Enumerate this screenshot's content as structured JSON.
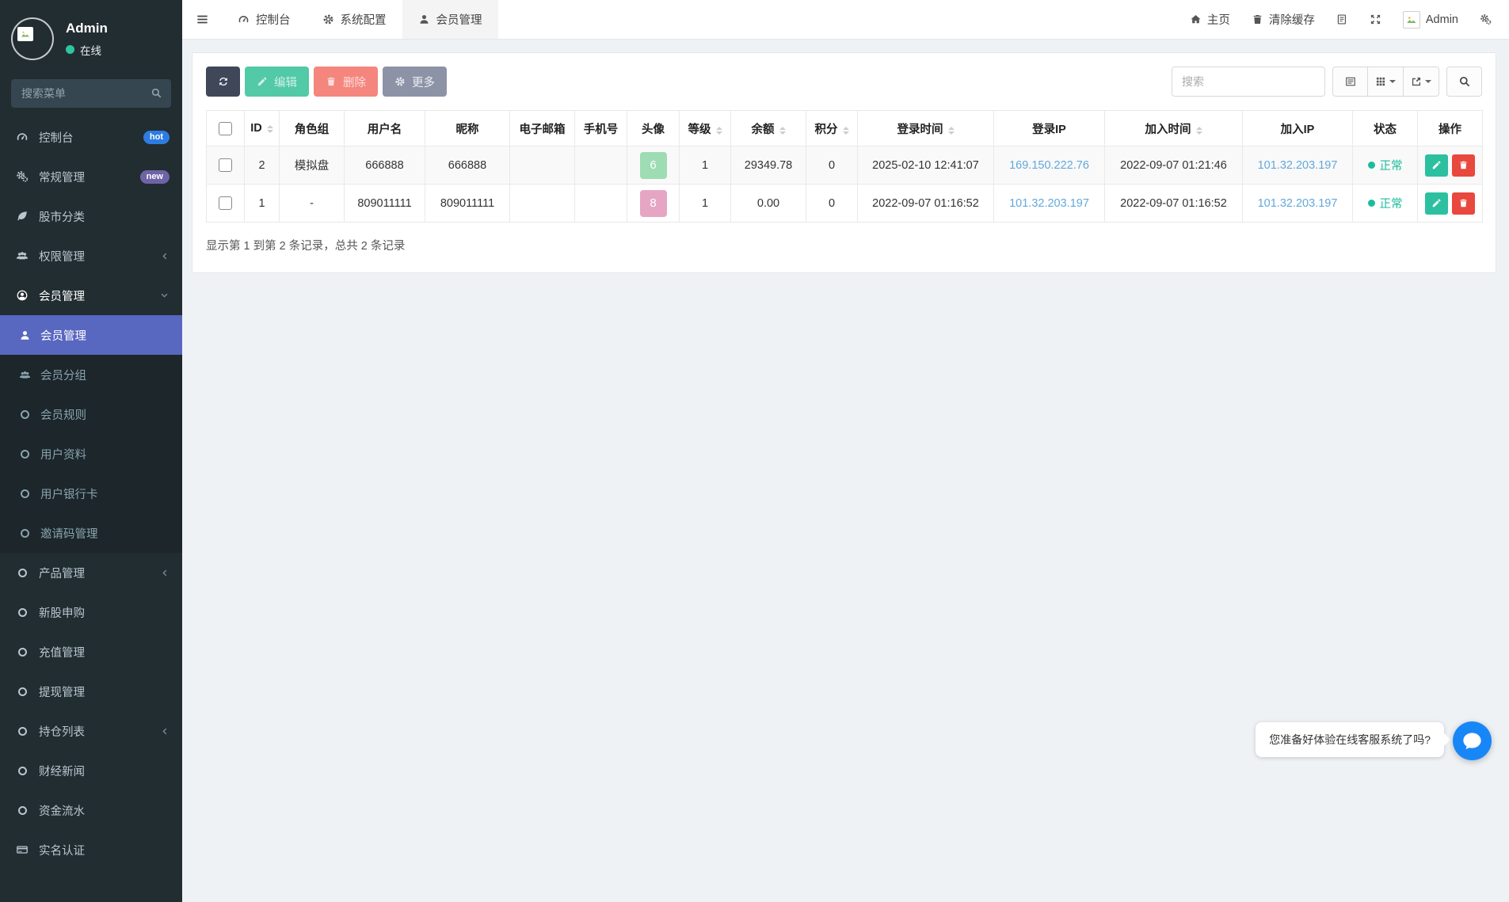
{
  "topnav": {
    "tabs": [
      {
        "label": "控制台",
        "icon": "gauge-icon",
        "active": false
      },
      {
        "label": "系统配置",
        "icon": "gear-icon",
        "active": false
      },
      {
        "label": "会员管理",
        "icon": "user-icon",
        "active": true
      }
    ],
    "home_label": "主页",
    "clear_cache_label": "清除缓存",
    "admin_label": "Admin"
  },
  "sidebar": {
    "user": {
      "name": "Admin",
      "status": "在线"
    },
    "search_placeholder": "搜索菜单",
    "items": [
      {
        "label": "控制台",
        "icon": "gauge-icon",
        "badge": "hot",
        "badge_color": "#2d7de1"
      },
      {
        "label": "常规管理",
        "icon": "cogs-icon",
        "badge": "new",
        "badge_color": "#6f63a8"
      },
      {
        "label": "股市分类",
        "icon": "leaf-icon"
      },
      {
        "label": "权限管理",
        "icon": "users-icon",
        "chevron": "left"
      },
      {
        "label": "会员管理",
        "icon": "user-circle-icon",
        "chevron": "down",
        "open": true,
        "children": [
          {
            "label": "会员管理",
            "icon": "user-icon",
            "active": true
          },
          {
            "label": "会员分组",
            "icon": "users-icon"
          },
          {
            "label": "会员规则",
            "icon": "circle-icon"
          },
          {
            "label": "用户资料",
            "icon": "circle-icon"
          },
          {
            "label": "用户银行卡",
            "icon": "circle-icon"
          },
          {
            "label": "邀请码管理",
            "icon": "circle-icon"
          }
        ]
      },
      {
        "label": "产品管理",
        "icon": "circle-icon",
        "chevron": "left"
      },
      {
        "label": "新股申购",
        "icon": "circle-icon"
      },
      {
        "label": "充值管理",
        "icon": "circle-icon"
      },
      {
        "label": "提现管理",
        "icon": "circle-icon"
      },
      {
        "label": "持仓列表",
        "icon": "circle-icon",
        "chevron": "left"
      },
      {
        "label": "财经新闻",
        "icon": "circle-icon"
      },
      {
        "label": "资金流水",
        "icon": "circle-icon"
      },
      {
        "label": "实名认证",
        "icon": "card-icon"
      }
    ]
  },
  "toolbar": {
    "edit_label": "编辑",
    "delete_label": "删除",
    "more_label": "更多",
    "search_placeholder": "搜索"
  },
  "table": {
    "columns": [
      {
        "key": "check",
        "label": "",
        "type": "checkbox"
      },
      {
        "key": "id",
        "label": "ID",
        "sortable": true
      },
      {
        "key": "role",
        "label": "角色组"
      },
      {
        "key": "username",
        "label": "用户名"
      },
      {
        "key": "nickname",
        "label": "昵称"
      },
      {
        "key": "email",
        "label": "电子邮箱"
      },
      {
        "key": "phone",
        "label": "手机号"
      },
      {
        "key": "avatar",
        "label": "头像",
        "type": "avatar"
      },
      {
        "key": "level",
        "label": "等级",
        "sortable": true
      },
      {
        "key": "balance",
        "label": "余额",
        "sortable": true
      },
      {
        "key": "points",
        "label": "积分",
        "sortable": true
      },
      {
        "key": "login_time",
        "label": "登录时间",
        "sortable": true
      },
      {
        "key": "login_ip",
        "label": "登录IP",
        "type": "link"
      },
      {
        "key": "join_time",
        "label": "加入时间",
        "sortable": true
      },
      {
        "key": "join_ip",
        "label": "加入IP",
        "type": "link"
      },
      {
        "key": "status",
        "label": "状态",
        "type": "status"
      },
      {
        "key": "ops",
        "label": "操作",
        "type": "ops"
      }
    ],
    "rows": [
      {
        "id": "2",
        "role": "模拟盘",
        "username": "666888",
        "nickname": "666888",
        "email": "",
        "phone": "",
        "avatar": "6",
        "avatar_color": "#9edcb4",
        "level": "1",
        "balance": "29349.78",
        "points": "0",
        "login_time": "2025-02-10 12:41:07",
        "login_ip": "169.150.222.76",
        "join_time": "2022-09-07 01:21:46",
        "join_ip": "101.32.203.197",
        "status": "正常"
      },
      {
        "id": "1",
        "role": "-",
        "username": "809011111",
        "nickname": "809011111",
        "email": "",
        "phone": "",
        "avatar": "8",
        "avatar_color": "#e6a6c3",
        "level": "1",
        "balance": "0.00",
        "points": "0",
        "login_time": "2022-09-07 01:16:52",
        "login_ip": "101.32.203.197",
        "join_time": "2022-09-07 01:16:52",
        "join_ip": "101.32.203.197",
        "status": "正常"
      }
    ],
    "footer": "显示第 1 到第 2 条记录，总共 2 条记录"
  },
  "chat": {
    "message": "您准备好体验在线客服系统了吗?"
  },
  "colors": {
    "accent": "#5867c0",
    "status_ok": "#1abc9c",
    "link": "#62a8dc",
    "btn_dark": "#3f4759",
    "btn_edit": "#52c9a7",
    "btn_delete": "#f4867e",
    "btn_more": "#8d93a6",
    "badge_hot": "#2d7de1",
    "badge_new": "#6f63a8",
    "avatar_green": "#9edcb4",
    "avatar_pink": "#e6a6c3",
    "chat_blue": "#1787f8"
  }
}
